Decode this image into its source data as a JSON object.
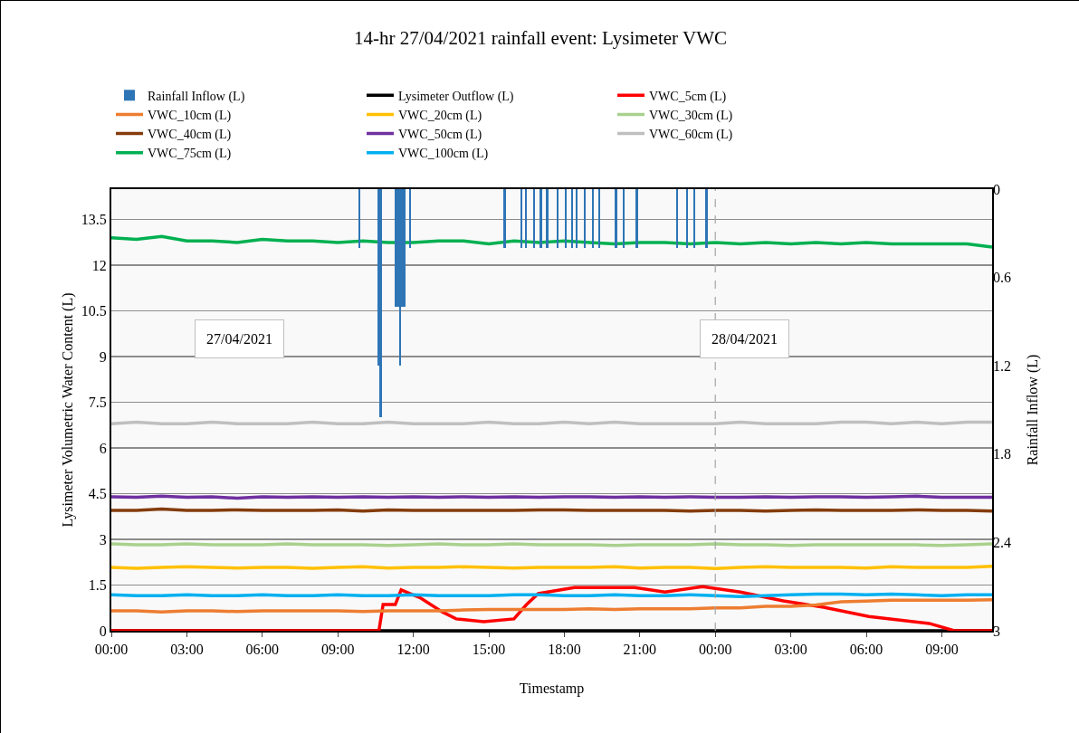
{
  "chart_data": {
    "type": "line",
    "title": "14-hr 27/04/2021 rainfall event: Lysimeter VWC",
    "xlabel": "Timestamp",
    "ylabel": "Lysimeter Volumetric Water Content (L)",
    "y2label": "Rainfall Inflow (L)",
    "x": [
      "2021-04-27T00:00",
      "2021-04-27T01:00",
      "2021-04-27T02:00",
      "2021-04-27T03:00",
      "2021-04-27T04:00",
      "2021-04-27T05:00",
      "2021-04-27T06:00",
      "2021-04-27T07:00",
      "2021-04-27T08:00",
      "2021-04-27T09:00",
      "2021-04-27T10:00",
      "2021-04-27T11:00",
      "2021-04-27T12:00",
      "2021-04-27T13:00",
      "2021-04-27T14:00",
      "2021-04-27T15:00",
      "2021-04-27T16:00",
      "2021-04-27T17:00",
      "2021-04-27T18:00",
      "2021-04-27T19:00",
      "2021-04-27T20:00",
      "2021-04-27T21:00",
      "2021-04-27T22:00",
      "2021-04-27T23:00",
      "2021-04-28T00:00",
      "2021-04-28T01:00",
      "2021-04-28T02:00",
      "2021-04-28T03:00",
      "2021-04-28T04:00",
      "2021-04-28T05:00",
      "2021-04-28T06:00",
      "2021-04-28T07:00",
      "2021-04-28T08:00",
      "2021-04-28T09:00",
      "2021-04-28T10:00",
      "2021-04-28T11:00"
    ],
    "xlim": [
      "2021-04-27T00:00",
      "2021-04-28T11:00"
    ],
    "xticks": [
      {
        "value": "2021-04-27T00:00",
        "label": "00:00"
      },
      {
        "value": "2021-04-27T03:00",
        "label": "03:00"
      },
      {
        "value": "2021-04-27T06:00",
        "label": "06:00"
      },
      {
        "value": "2021-04-27T09:00",
        "label": "09:00"
      },
      {
        "value": "2021-04-27T12:00",
        "label": "12:00"
      },
      {
        "value": "2021-04-27T15:00",
        "label": "15:00"
      },
      {
        "value": "2021-04-27T18:00",
        "label": "18:00"
      },
      {
        "value": "2021-04-27T21:00",
        "label": "21:00"
      },
      {
        "value": "2021-04-28T00:00",
        "label": "00:00"
      },
      {
        "value": "2021-04-28T03:00",
        "label": "03:00"
      },
      {
        "value": "2021-04-28T06:00",
        "label": "06:00"
      },
      {
        "value": "2021-04-28T09:00",
        "label": "09:00"
      }
    ],
    "ylim": [
      0,
      14.5
    ],
    "yticks": [
      0,
      1.5,
      3,
      4.5,
      6,
      7.5,
      9,
      10.5,
      12,
      13.5
    ],
    "y2lim": [
      3,
      0
    ],
    "y2ticks": [
      0,
      0.6,
      1.2,
      1.8,
      2.4,
      3
    ],
    "grid": "y",
    "legend": "top",
    "marker": "none",
    "line_style": "solid",
    "ref_lines": [
      {
        "axis": "x",
        "value": "2021-04-28T00:00",
        "color": "#a6a6a6",
        "line_style": "dashed"
      }
    ],
    "annotations": [
      "27/04/2021",
      "28/04/2021"
    ],
    "series": [
      {
        "name": "Rainfall Inflow (L)",
        "type": "bar",
        "axis": "y2",
        "color": "#2e75b6",
        "x": [
          "2021-04-27T09:52",
          "2021-04-27T10:38",
          "2021-04-27T10:42",
          "2021-04-27T11:19",
          "2021-04-27T11:23",
          "2021-04-27T11:28",
          "2021-04-27T11:32",
          "2021-04-27T11:38",
          "2021-04-27T11:53",
          "2021-04-27T15:38",
          "2021-04-27T16:18",
          "2021-04-27T16:28",
          "2021-04-27T16:48",
          "2021-04-27T17:04",
          "2021-04-27T17:19",
          "2021-04-27T17:44",
          "2021-04-27T18:04",
          "2021-04-27T18:19",
          "2021-04-27T18:29",
          "2021-04-27T18:49",
          "2021-04-27T19:09",
          "2021-04-27T19:23",
          "2021-04-27T20:03",
          "2021-04-27T20:22",
          "2021-04-27T20:53",
          "2021-04-27T22:29",
          "2021-04-27T22:53",
          "2021-04-27T23:10",
          "2021-04-27T23:39"
        ],
        "values": [
          0.4,
          1.2,
          1.55,
          0.8,
          0.8,
          1.2,
          0.8,
          0.8,
          0.4,
          0.4,
          0.4,
          0.4,
          0.4,
          0.4,
          0.4,
          0.4,
          0.4,
          0.4,
          0.4,
          0.4,
          0.4,
          0.4,
          0.4,
          0.4,
          0.4,
          0.4,
          0.4,
          0.4,
          0.4
        ]
      },
      {
        "name": "Lysimeter Outflow (L)",
        "color": "#000000",
        "x": [
          "2021-04-27T00:00",
          "2021-04-28T11:00"
        ],
        "values": [
          0,
          0
        ]
      },
      {
        "name": "VWC_5cm (L)",
        "color": "#ff0000",
        "x": [
          "2021-04-27T00:00",
          "2021-04-27T10:38",
          "2021-04-27T10:48",
          "2021-04-27T11:17",
          "2021-04-27T11:31",
          "2021-04-27T12:18",
          "2021-04-27T13:09",
          "2021-04-27T13:42",
          "2021-04-27T14:48",
          "2021-04-27T16:00",
          "2021-04-27T16:30",
          "2021-04-27T16:58",
          "2021-04-27T18:24",
          "2021-04-27T20:48",
          "2021-04-27T22:00",
          "2021-04-27T23:30",
          "2021-04-28T01:00",
          "2021-04-28T02:42",
          "2021-04-28T04:18",
          "2021-04-28T06:06",
          "2021-04-28T08:30",
          "2021-04-28T09:30",
          "2021-04-28T11:00"
        ],
        "values": [
          0,
          0,
          0.86,
          0.86,
          1.34,
          1.07,
          0.62,
          0.39,
          0.3,
          0.39,
          0.86,
          1.22,
          1.42,
          1.42,
          1.27,
          1.45,
          1.27,
          0.98,
          0.77,
          0.47,
          0.24,
          0,
          0
        ]
      },
      {
        "name": "VWC_10cm (L)",
        "color": "#ed7d31",
        "values": [
          0.65,
          0.65,
          0.62,
          0.65,
          0.65,
          0.63,
          0.65,
          0.65,
          0.65,
          0.65,
          0.63,
          0.65,
          0.65,
          0.65,
          0.68,
          0.7,
          0.7,
          0.7,
          0.7,
          0.72,
          0.7,
          0.72,
          0.72,
          0.72,
          0.75,
          0.75,
          0.8,
          0.8,
          0.85,
          0.95,
          0.97,
          1.0,
          1.0,
          1.0,
          1.0,
          1.02
        ]
      },
      {
        "name": "VWC_20cm (L)",
        "color": "#ffc000",
        "values": [
          2.08,
          2.05,
          2.08,
          2.1,
          2.08,
          2.06,
          2.08,
          2.08,
          2.05,
          2.08,
          2.1,
          2.06,
          2.08,
          2.08,
          2.1,
          2.08,
          2.06,
          2.08,
          2.08,
          2.08,
          2.1,
          2.06,
          2.08,
          2.08,
          2.04,
          2.08,
          2.1,
          2.08,
          2.08,
          2.08,
          2.06,
          2.1,
          2.08,
          2.08,
          2.08,
          2.12
        ]
      },
      {
        "name": "VWC_30cm (L)",
        "color": "#a9d18e",
        "values": [
          2.85,
          2.82,
          2.82,
          2.85,
          2.82,
          2.82,
          2.82,
          2.85,
          2.82,
          2.82,
          2.82,
          2.8,
          2.82,
          2.85,
          2.82,
          2.82,
          2.85,
          2.82,
          2.82,
          2.82,
          2.8,
          2.82,
          2.82,
          2.82,
          2.85,
          2.82,
          2.82,
          2.8,
          2.82,
          2.82,
          2.82,
          2.82,
          2.82,
          2.8,
          2.82,
          2.85
        ]
      },
      {
        "name": "VWC_40cm (L)",
        "color": "#843c0c",
        "values": [
          3.95,
          3.95,
          4.0,
          3.95,
          3.95,
          3.97,
          3.95,
          3.95,
          3.95,
          3.97,
          3.93,
          3.97,
          3.95,
          3.95,
          3.95,
          3.95,
          3.95,
          3.97,
          3.97,
          3.95,
          3.95,
          3.95,
          3.95,
          3.93,
          3.95,
          3.95,
          3.93,
          3.95,
          3.97,
          3.95,
          3.95,
          3.95,
          3.97,
          3.95,
          3.95,
          3.93
        ]
      },
      {
        "name": "VWC_50cm (L)",
        "color": "#7030a0",
        "values": [
          4.4,
          4.38,
          4.42,
          4.38,
          4.4,
          4.35,
          4.4,
          4.38,
          4.4,
          4.38,
          4.4,
          4.38,
          4.4,
          4.38,
          4.4,
          4.38,
          4.4,
          4.38,
          4.4,
          4.4,
          4.38,
          4.4,
          4.38,
          4.4,
          4.38,
          4.38,
          4.4,
          4.38,
          4.4,
          4.4,
          4.38,
          4.4,
          4.42,
          4.38,
          4.38,
          4.38
        ]
      },
      {
        "name": "VWC_60cm (L)",
        "color": "#bfbfbf",
        "values": [
          6.8,
          6.85,
          6.8,
          6.8,
          6.85,
          6.8,
          6.8,
          6.8,
          6.85,
          6.8,
          6.8,
          6.85,
          6.8,
          6.8,
          6.8,
          6.85,
          6.8,
          6.8,
          6.85,
          6.8,
          6.85,
          6.8,
          6.8,
          6.8,
          6.8,
          6.85,
          6.8,
          6.8,
          6.8,
          6.85,
          6.85,
          6.8,
          6.85,
          6.8,
          6.85,
          6.85
        ]
      },
      {
        "name": "VWC_75cm (L)",
        "color": "#00b050",
        "values": [
          12.9,
          12.85,
          12.95,
          12.8,
          12.8,
          12.75,
          12.85,
          12.8,
          12.8,
          12.75,
          12.8,
          12.75,
          12.75,
          12.8,
          12.8,
          12.7,
          12.8,
          12.75,
          12.8,
          12.75,
          12.7,
          12.75,
          12.75,
          12.7,
          12.75,
          12.7,
          12.75,
          12.7,
          12.75,
          12.7,
          12.75,
          12.7,
          12.7,
          12.7,
          12.7,
          12.6
        ]
      },
      {
        "name": "VWC_100cm (L)",
        "color": "#00b0f0",
        "values": [
          1.18,
          1.15,
          1.15,
          1.18,
          1.15,
          1.15,
          1.18,
          1.15,
          1.15,
          1.18,
          1.15,
          1.15,
          1.18,
          1.15,
          1.15,
          1.15,
          1.18,
          1.18,
          1.15,
          1.15,
          1.18,
          1.15,
          1.15,
          1.18,
          1.15,
          1.12,
          1.15,
          1.18,
          1.2,
          1.2,
          1.18,
          1.2,
          1.18,
          1.15,
          1.18,
          1.18
        ]
      }
    ]
  }
}
